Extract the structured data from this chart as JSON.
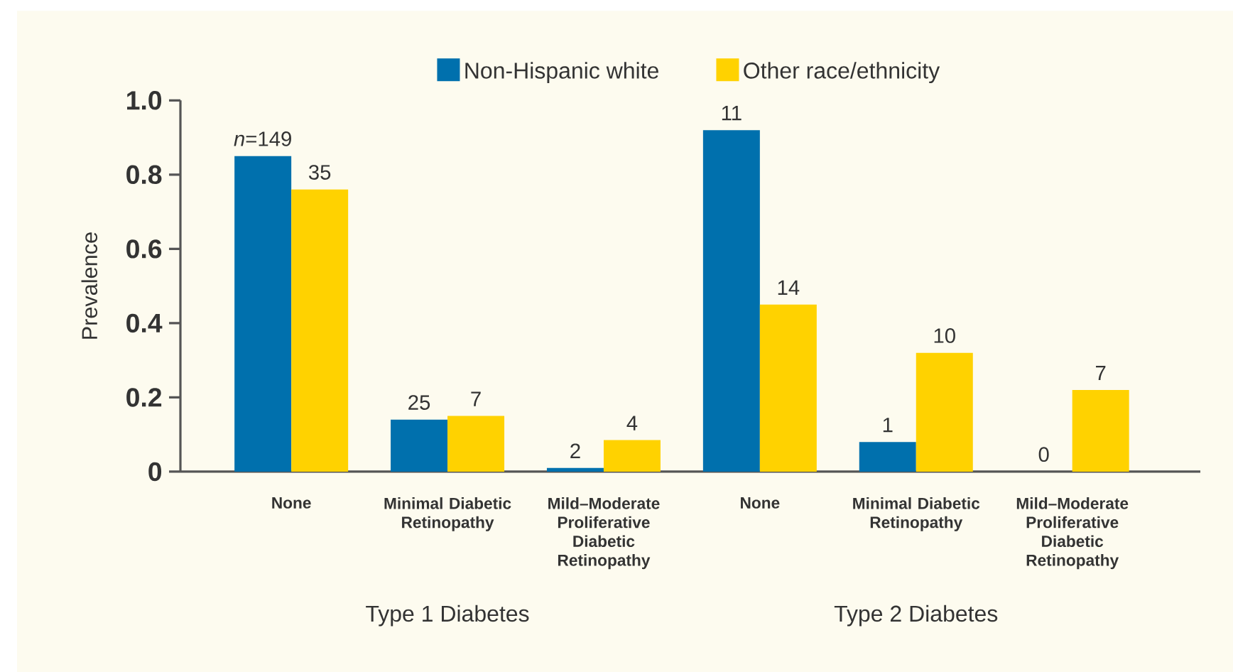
{
  "chart_data": {
    "type": "bar",
    "categories": [
      "None",
      "Minimal Diabetic Retinopathy",
      "Mild–Moderate Proliferative Diabetic Retinopathy",
      "None",
      "Minimal Diabetic Retinopathy",
      "Mild–Moderate Proliferative Diabetic Retinopathy"
    ],
    "series": [
      {
        "name": "Non-Hispanic white",
        "color": "#0070ad",
        "values": [
          0.85,
          0.14,
          0.01,
          0.92,
          0.08,
          0
        ]
      },
      {
        "name": "Other race/ethnicity",
        "color": "#ffd200",
        "values": [
          0.76,
          0.15,
          0.085,
          0.45,
          0.32,
          0.22
        ]
      }
    ],
    "ylabel": "Prevalence",
    "ylim": [
      0,
      1
    ],
    "yticks": [
      0,
      0.2,
      0.4,
      0.6,
      0.8,
      {
        "value": 1,
        "label": "1.0"
      }
    ],
    "legend": "top",
    "annotations": [
      "Type 1 Diabetes",
      "Type 2 Diabetes",
      "*n*=149",
      "25",
      "2",
      "11",
      "1",
      "0",
      "35",
      "7",
      "4",
      "14",
      "10",
      "7"
    ]
  }
}
